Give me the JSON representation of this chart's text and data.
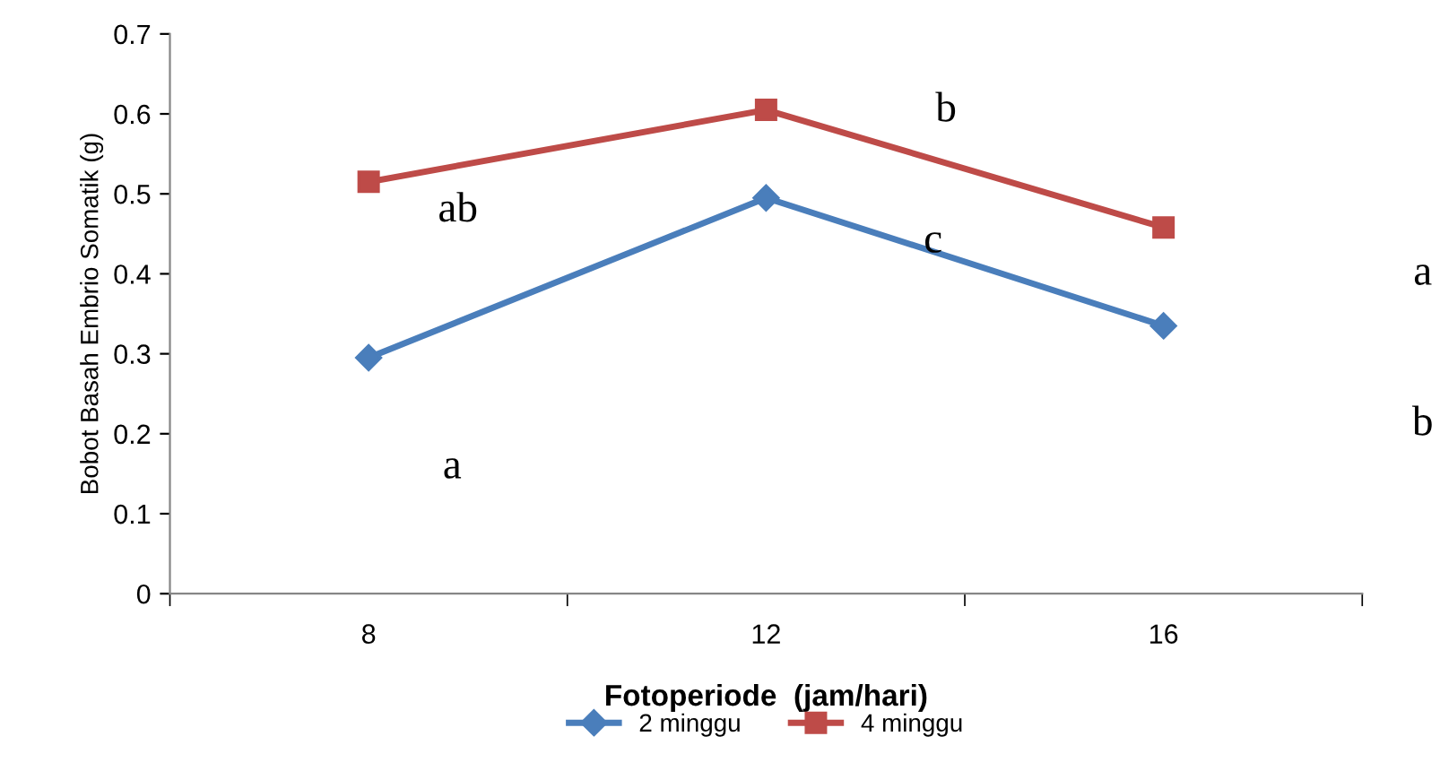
{
  "chart_data": {
    "type": "line",
    "xlabel": "Fotoperiode  (jam/hari)",
    "ylabel": "Bobot Basah Embrio Somatik (g)",
    "categories": [
      "8",
      "12",
      "16"
    ],
    "series": [
      {
        "name": "2 minggu",
        "color": "#4a7ebb",
        "values": [
          0.295,
          0.495,
          0.335
        ],
        "marker": "diamond"
      },
      {
        "name": "4 minggu",
        "color": "#be4b48",
        "values": [
          0.515,
          0.605,
          0.458
        ],
        "marker": "square"
      }
    ],
    "ylim": [
      0,
      0.7
    ],
    "yticks": [
      {
        "value": 0,
        "label": "0"
      },
      0.1,
      0.2,
      0.3,
      0.4,
      0.5,
      0.6,
      0.7
    ],
    "annotations": [
      "ab",
      "b",
      "c",
      "a",
      "b",
      "a"
    ],
    "legend": "bottom",
    "grid": false,
    "line_style": "solid"
  }
}
